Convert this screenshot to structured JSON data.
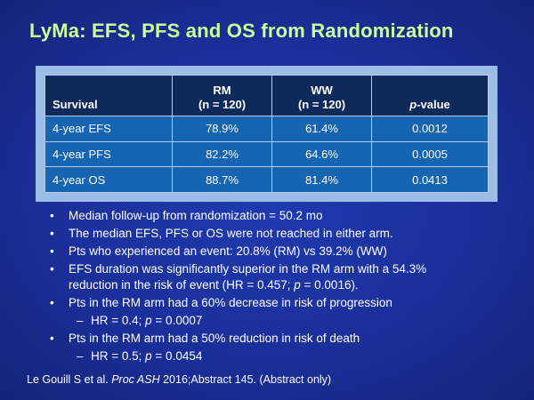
{
  "slide": {
    "title": "LyMa: EFS, PFS and OS from Randomization",
    "table": {
      "headers": {
        "col1": "Survival",
        "col2_line1": "RM",
        "col2_line2": "(n = 120)",
        "col3_line1": "WW",
        "col3_line2": "(n = 120)",
        "col4_italic": "p",
        "col4_rest": "-value"
      },
      "rows": [
        [
          "4-year EFS",
          "78.9%",
          "61.4%",
          "0.0012"
        ],
        [
          "4-year PFS",
          "82.2%",
          "64.6%",
          "0.0005"
        ],
        [
          "4-year OS",
          "88.7%",
          "81.4%",
          "0.0413"
        ]
      ]
    },
    "bullets": {
      "b1": "Median follow-up from randomization = 50.2 mo",
      "b2": "The median EFS, PFS or OS were not reached in either arm.",
      "b3": "Pts who experienced an event: 20.8% (RM) vs 39.2% (WW)",
      "b4_line1": "EFS duration was significantly superior in the RM arm with a 54.3%",
      "b4_line2_pre": "reduction in the risk of event (HR = 0.457; ",
      "b4_line2_p": "p",
      "b4_line2_post": " = 0.0016).",
      "b5": "Pts in the RM arm had a 60% decrease in risk of progression",
      "s5_pre": "HR = 0.4; ",
      "s5_p": "p",
      "s5_post": " = 0.0007",
      "b6": "Pts in the RM arm had a 50% reduction in risk of death",
      "s6_pre": "HR = 0.5; ",
      "s6_p": "p",
      "s6_post": " = 0.0454"
    },
    "footer": {
      "pre": "Le Gouill S et al. ",
      "journal": "Proc ASH",
      "post": " 2016;Abstract 145. (Abstract only)"
    }
  },
  "colors": {
    "title": "#ccff99",
    "background": "#1a2f9a",
    "table_header": "#0d2a5a",
    "table_body": "#1565b2",
    "table_frame": "#9bbde6"
  }
}
